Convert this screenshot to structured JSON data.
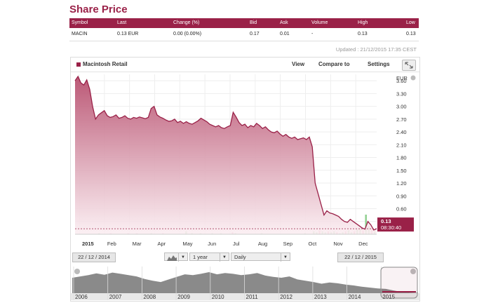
{
  "title": "Share Price",
  "quote": {
    "headers": {
      "symbol": "Symbol",
      "last": "Last",
      "change": "Change (%)",
      "bid": "Bid",
      "ask": "Ask",
      "volume": "Volume",
      "high": "High",
      "low": "Low"
    },
    "row": {
      "symbol": "MACIN",
      "last": "0.13 EUR",
      "change": "0.00 (0.00%)",
      "bid": "0.17",
      "ask": "0.01",
      "volume": "-",
      "high": "0.13",
      "low": "0.13"
    }
  },
  "updated": "Updated : 21/12/2015 17:35 CEST",
  "toolbar": {
    "series_name": "Macintosh Retail",
    "view": "View",
    "compare": "Compare to",
    "settings": "Settings"
  },
  "controls": {
    "from_date": "22 / 12 / 2014",
    "to_date": "22 / 12 / 2015",
    "period": "1 year",
    "interval": "Daily"
  },
  "colors": {
    "accent": "#9a2148",
    "volume_green": "#8fcf8f",
    "volume_red": "#e38a9e"
  },
  "icons": {
    "fullscreen": "expand-icon",
    "chart_type": "mountain-chart-icon",
    "zoom": "zoom-icon"
  },
  "chart_data": {
    "type": "area",
    "currency_label": "EUR",
    "ylim": [
      0,
      3.75
    ],
    "y_ticks": [
      "3.60",
      "3.30",
      "3.00",
      "2.70",
      "2.40",
      "2.10",
      "1.80",
      "1.50",
      "1.20",
      "0.90",
      "0.60",
      "0.30"
    ],
    "month_labels": [
      "2015",
      "Feb",
      "Mar",
      "Apr",
      "May",
      "Jun",
      "Jul",
      "Aug",
      "Sep",
      "Oct",
      "Nov",
      "Dec"
    ],
    "last_value_label": "0.13",
    "last_time_label": "08:30:40",
    "series": [
      {
        "values": [
          3.6,
          3.7,
          3.55,
          3.5,
          3.62,
          3.4,
          3.0,
          2.7,
          2.8,
          2.85,
          2.9,
          2.78,
          2.74,
          2.76,
          2.8,
          2.72,
          2.74,
          2.78,
          2.72,
          2.7,
          2.74,
          2.72,
          2.75,
          2.73,
          2.71,
          2.74,
          2.95,
          3.0,
          2.8,
          2.75,
          2.72,
          2.68,
          2.65,
          2.66,
          2.7,
          2.62,
          2.65,
          2.6,
          2.64,
          2.6,
          2.58,
          2.62,
          2.66,
          2.72,
          2.68,
          2.64,
          2.58,
          2.55,
          2.52,
          2.55,
          2.5,
          2.48,
          2.52,
          2.55,
          2.86,
          2.75,
          2.62,
          2.55,
          2.58,
          2.5,
          2.55,
          2.52,
          2.6,
          2.55,
          2.48,
          2.52,
          2.45,
          2.4,
          2.38,
          2.42,
          2.35,
          2.3,
          2.34,
          2.28,
          2.25,
          2.28,
          2.22,
          2.24,
          2.26,
          2.22,
          2.28,
          2.05,
          1.2,
          0.95,
          0.7,
          0.45,
          0.55,
          0.5,
          0.48,
          0.45,
          0.42,
          0.35,
          0.3,
          0.28,
          0.35,
          0.3,
          0.25,
          0.2,
          0.15,
          0.12,
          0.3,
          0.22,
          0.1,
          0.13
        ]
      }
    ],
    "volume": [
      0,
      0,
      0,
      0,
      0,
      0,
      0,
      0,
      1,
      0,
      0,
      0,
      1,
      0,
      0,
      0,
      0,
      0,
      1,
      0,
      0,
      1,
      0,
      0,
      0,
      0,
      1,
      0,
      0,
      0,
      1,
      0,
      0,
      0,
      0,
      0,
      0,
      0,
      3,
      0,
      1,
      0,
      0,
      1,
      0,
      0,
      0,
      1,
      0,
      0,
      1,
      0,
      0,
      0,
      2,
      1,
      0,
      0,
      0,
      0,
      0,
      0,
      0,
      0,
      1,
      0,
      0,
      0,
      0,
      0,
      0,
      0,
      0,
      0,
      0,
      0,
      0,
      0,
      0,
      1,
      0,
      0,
      3,
      2,
      4,
      3,
      2,
      3,
      2,
      3,
      2,
      1,
      2,
      3,
      4,
      2,
      3,
      5,
      6,
      4,
      20,
      8,
      6,
      3
    ],
    "navigator_labels": [
      "2006",
      "2007",
      "2008",
      "2009",
      "2010",
      "2011",
      "2012",
      "2013",
      "2014",
      "2015"
    ],
    "navigator_values": [
      3.6,
      3.9,
      4.2,
      4.6,
      4.3,
      4.8,
      4.5,
      4.2,
      3.9,
      3.3,
      2.9,
      2.6,
      3.2,
      3.8,
      4.4,
      4.2,
      4.5,
      4.9,
      4.4,
      4.7,
      4.5,
      4.2,
      4.4,
      4.7,
      4.1,
      3.8,
      3.6,
      3.9,
      3.2,
      2.9,
      2.6,
      2.2,
      2.5,
      2.3,
      2.0,
      1.8,
      1.5,
      1.3,
      1.1,
      1.0,
      0.6,
      0.3,
      0.15,
      0.1
    ]
  }
}
